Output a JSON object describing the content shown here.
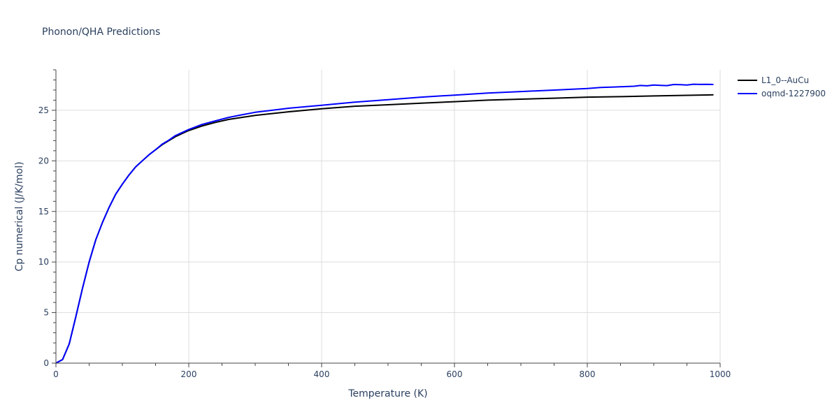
{
  "chart_data": {
    "type": "line",
    "title": "Phonon/QHA Predictions",
    "xlabel": "Temperature (K)",
    "ylabel": "Cp numerical (J/K/mol)",
    "xlim": [
      0,
      1000
    ],
    "ylim": [
      0,
      29
    ],
    "xticks": [
      0,
      200,
      400,
      600,
      800,
      1000
    ],
    "yticks": [
      0,
      5,
      10,
      15,
      20,
      25
    ],
    "grid": true,
    "legend": "top-right",
    "series": [
      {
        "name": "L1_0--AuCu",
        "color": "#000000",
        "x": [
          0,
          10,
          20,
          30,
          40,
          50,
          60,
          70,
          80,
          90,
          100,
          110,
          120,
          130,
          140,
          150,
          160,
          170,
          180,
          190,
          200,
          220,
          240,
          260,
          280,
          300,
          350,
          400,
          450,
          500,
          550,
          600,
          650,
          700,
          750,
          800,
          850,
          900,
          950,
          990
        ],
        "y": [
          0,
          0.35,
          1.9,
          4.6,
          7.4,
          10.0,
          12.2,
          13.9,
          15.4,
          16.7,
          17.7,
          18.6,
          19.4,
          20.0,
          20.6,
          21.1,
          21.6,
          22.0,
          22.4,
          22.7,
          23.0,
          23.45,
          23.8,
          24.1,
          24.3,
          24.5,
          24.85,
          25.15,
          25.4,
          25.55,
          25.7,
          25.85,
          26.0,
          26.1,
          26.2,
          26.3,
          26.35,
          26.42,
          26.48,
          26.53
        ]
      },
      {
        "name": "oqmd-1227900",
        "color": "#0000ff",
        "x": [
          0,
          10,
          20,
          30,
          40,
          50,
          60,
          70,
          80,
          90,
          100,
          110,
          120,
          130,
          140,
          150,
          160,
          170,
          180,
          190,
          200,
          220,
          240,
          260,
          280,
          300,
          350,
          400,
          450,
          500,
          550,
          600,
          650,
          700,
          750,
          800,
          820,
          840,
          860,
          870,
          880,
          890,
          900,
          910,
          920,
          930,
          940,
          950,
          960,
          970,
          980,
          990
        ],
        "y": [
          0,
          0.35,
          1.9,
          4.6,
          7.4,
          10.0,
          12.2,
          13.9,
          15.4,
          16.7,
          17.7,
          18.6,
          19.4,
          20.0,
          20.6,
          21.1,
          21.65,
          22.05,
          22.5,
          22.8,
          23.1,
          23.6,
          23.95,
          24.3,
          24.55,
          24.8,
          25.2,
          25.5,
          25.8,
          26.05,
          26.3,
          26.5,
          26.7,
          26.85,
          27.0,
          27.15,
          27.25,
          27.3,
          27.35,
          27.38,
          27.45,
          27.42,
          27.5,
          27.47,
          27.44,
          27.55,
          27.53,
          27.5,
          27.58,
          27.56,
          27.57,
          27.55
        ]
      }
    ]
  }
}
